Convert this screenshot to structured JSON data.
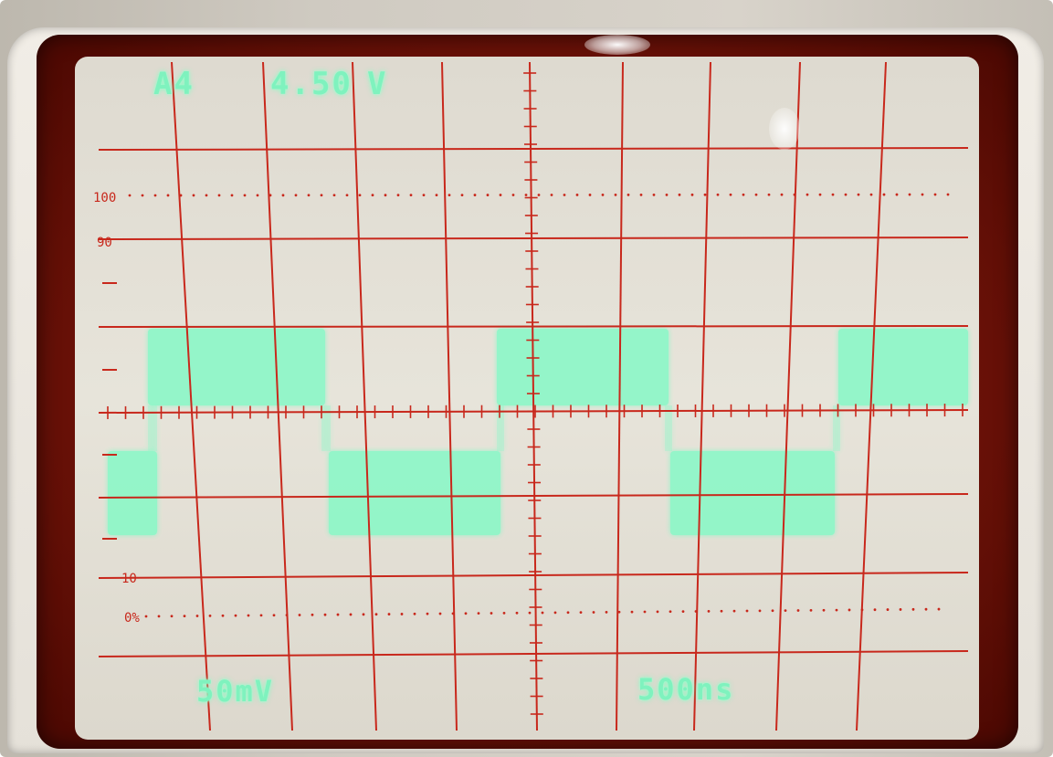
{
  "readouts": {
    "channel": "A4",
    "measurement": "4.50",
    "measurement_unit": "V",
    "volts_per_div": "50mV",
    "time_per_div": "500ns"
  },
  "graticule_labels": {
    "level_100": "100",
    "level_90": "90",
    "level_10": "10",
    "level_0": "0%"
  },
  "colors": {
    "graticule": "#c8281c",
    "trace": "#8ef7c8",
    "screen": "#e4e1d7",
    "readout": "#7ff2be"
  },
  "signal": {
    "type": "square wave",
    "cycles_shown": 2.5
  }
}
